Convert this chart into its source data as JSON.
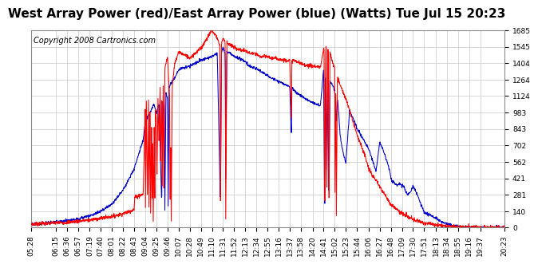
{
  "title": "West Array Power (red)/East Array Power (blue) (Watts) Tue Jul 15 20:23",
  "copyright": "Copyright 2008 Cartronics.com",
  "background_color": "#ffffff",
  "plot_bg_color": "#ffffff",
  "grid_color": "#c8c8c8",
  "red_color": "#ff0000",
  "blue_color": "#0000cc",
  "yticks": [
    0.0,
    140.4,
    280.9,
    421.3,
    561.7,
    702.2,
    842.6,
    983.1,
    1123.5,
    1263.9,
    1404.4,
    1544.8,
    1685.2
  ],
  "ymax": 1685.2,
  "ymin": 0.0,
  "title_fontsize": 11,
  "copyright_fontsize": 7,
  "tick_fontsize": 6.5,
  "xtick_labels": [
    "05:28",
    "06:15",
    "06:36",
    "06:57",
    "07:19",
    "07:40",
    "08:01",
    "08:22",
    "08:43",
    "09:04",
    "09:25",
    "09:46",
    "10:07",
    "10:28",
    "10:49",
    "11:10",
    "11:31",
    "11:52",
    "12:13",
    "12:34",
    "12:55",
    "13:16",
    "13:37",
    "13:58",
    "14:20",
    "14:41",
    "15:02",
    "15:23",
    "15:44",
    "16:06",
    "16:27",
    "16:48",
    "17:09",
    "17:30",
    "17:51",
    "18:13",
    "18:34",
    "18:55",
    "19:16",
    "19:37",
    "20:23"
  ]
}
